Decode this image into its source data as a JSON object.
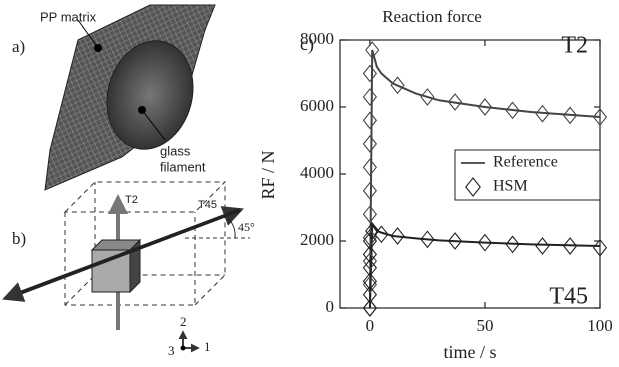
{
  "panels": {
    "a": {
      "label": "a)",
      "matrix": "PP matrix",
      "filament": [
        "glass",
        "filament"
      ]
    },
    "b": {
      "label": "b)",
      "axis_t2": "T2",
      "axis_t45": "T45",
      "angle": "45°",
      "coords": [
        "2",
        "3",
        "1"
      ]
    }
  },
  "chart_data": {
    "type": "line",
    "panel_label": "c)",
    "title": "Reaction force",
    "x_label": "time / s",
    "y_label": "RF / N",
    "xlim": [
      -13,
      100
    ],
    "xticks": [
      0,
      50,
      100
    ],
    "ylim": [
      0,
      8000
    ],
    "yticks": [
      0,
      2000,
      4000,
      6000,
      8000
    ],
    "legend": [
      {
        "name": "Reference",
        "marker": "line"
      },
      {
        "name": "HSM",
        "marker": "diamond"
      }
    ],
    "legend_position": "right",
    "series": [
      {
        "label": "T2",
        "style": "line",
        "color": "#444",
        "x": [
          0,
          1,
          3,
          5,
          10,
          20,
          30,
          50,
          70,
          100
        ],
        "values": [
          0,
          7700,
          7200,
          7000,
          6700,
          6400,
          6200,
          6000,
          5850,
          5700
        ]
      },
      {
        "label": "T45",
        "style": "line",
        "color": "#222",
        "x": [
          0,
          1,
          3,
          5,
          10,
          20,
          30,
          50,
          70,
          100
        ],
        "values": [
          0,
          2500,
          2300,
          2250,
          2150,
          2080,
          2020,
          1950,
          1900,
          1850
        ]
      },
      {
        "style": "diamond",
        "color": "#444",
        "x": [
          0,
          0,
          0,
          0,
          0,
          0,
          0,
          0,
          0,
          0,
          0,
          1,
          12,
          25,
          37,
          50,
          62,
          75,
          87,
          100
        ],
        "values": [
          0,
          700,
          1400,
          2100,
          2800,
          3500,
          4200,
          4900,
          5600,
          6300,
          7000,
          7700,
          6650,
          6300,
          6150,
          6000,
          5900,
          5800,
          5750,
          5700
        ]
      },
      {
        "style": "diamond",
        "color": "#222",
        "x": [
          0,
          0,
          0,
          0,
          0,
          0,
          1,
          5,
          12,
          25,
          37,
          50,
          62,
          75,
          87,
          100
        ],
        "values": [
          0,
          400,
          800,
          1200,
          1600,
          2000,
          2300,
          2200,
          2150,
          2050,
          2000,
          1950,
          1900,
          1850,
          1850,
          1800
        ]
      }
    ]
  }
}
